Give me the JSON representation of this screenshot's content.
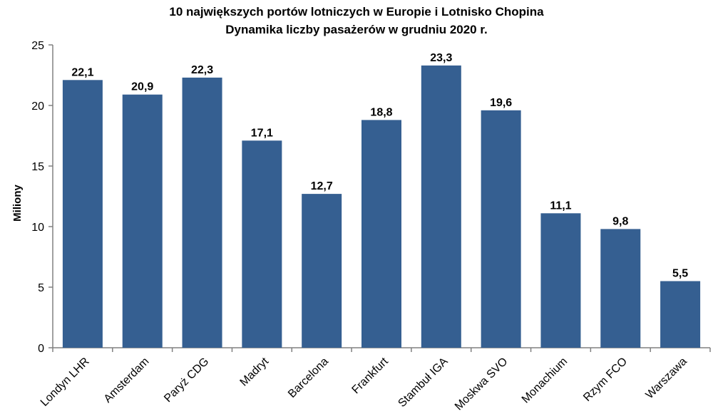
{
  "chart_data": {
    "type": "bar",
    "title": "10 największych portów lotniczych w Europie i Lotnisko Chopina",
    "subtitle": "Dynamika liczby pasażerów w grudniu 2020 r.",
    "ylabel": "Miliony",
    "xlabel": "",
    "ylim": [
      0,
      25
    ],
    "yticks": [
      "0",
      "5",
      "10",
      "15",
      "20",
      "25"
    ],
    "categories": [
      "Londyn LHR",
      "Amsterdam",
      "Paryż CDG",
      "Madryt",
      "Barcelona",
      "Frankfurt",
      "Stambuł IGA",
      "Moskwa SVO",
      "Monachium",
      "Rzym FCO",
      "Warszawa"
    ],
    "values": [
      22.1,
      20.9,
      22.3,
      17.1,
      12.7,
      18.8,
      23.3,
      19.6,
      11.1,
      9.8,
      5.5
    ],
    "data_labels": [
      "22,1",
      "20,9",
      "22,3",
      "17,1",
      "12,7",
      "18,8",
      "23,3",
      "19,6",
      "11,1",
      "9,8",
      "5,5"
    ],
    "bar_color": "#355F91",
    "grid": false,
    "legend": "none"
  }
}
